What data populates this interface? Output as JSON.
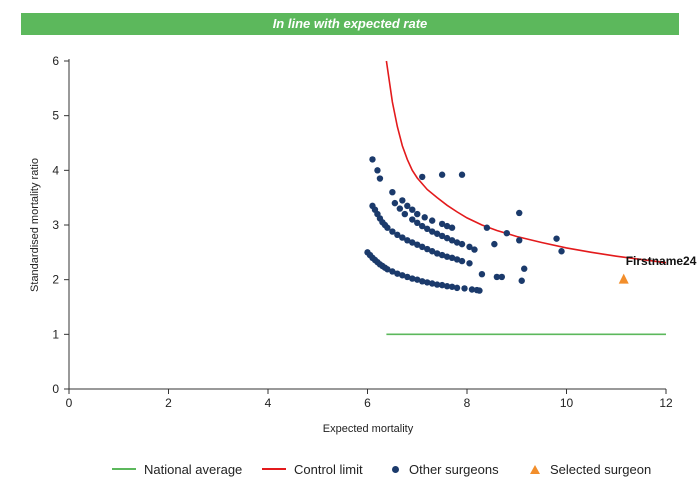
{
  "banner": {
    "text": "In line with expected rate",
    "color": "#5cb85c"
  },
  "chart_data": {
    "type": "scatter",
    "xlabel": "Expected mortality",
    "ylabel": "Standardised mortality ratio",
    "xlim": [
      0,
      12
    ],
    "ylim": [
      0,
      6
    ],
    "xticks": [
      0,
      2,
      4,
      6,
      8,
      10,
      12
    ],
    "yticks": [
      0,
      1,
      2,
      3,
      4,
      5,
      6
    ],
    "grid": false,
    "legend_position": "bottom",
    "annotation": {
      "text": "Firstname24",
      "x": 11.15,
      "y": 2.27
    },
    "series": [
      {
        "name": "National average",
        "type": "line",
        "color": "#5cb85c",
        "x": [
          6.38,
          12.0
        ],
        "y": [
          1.0,
          1.0
        ]
      },
      {
        "name": "Control limit",
        "type": "line",
        "color": "#e31a1c",
        "x": [
          6.38,
          6.5,
          6.6,
          6.7,
          6.8,
          6.9,
          7.0,
          7.2,
          7.4,
          7.6,
          7.8,
          8.0,
          8.3,
          8.6,
          9.0,
          9.5,
          10.0,
          10.5,
          11.0,
          11.5,
          12.0
        ],
        "y": [
          6.0,
          5.25,
          4.8,
          4.45,
          4.2,
          4.0,
          3.86,
          3.65,
          3.5,
          3.36,
          3.24,
          3.13,
          3.0,
          2.9,
          2.79,
          2.68,
          2.58,
          2.5,
          2.43,
          2.37,
          2.31
        ]
      },
      {
        "name": "Other surgeons",
        "type": "scatter",
        "color": "#1b3a6b",
        "x": [
          6.0,
          6.05,
          6.1,
          6.15,
          6.2,
          6.25,
          6.3,
          6.35,
          6.4,
          6.5,
          6.6,
          6.7,
          6.8,
          6.9,
          7.0,
          7.1,
          7.2,
          7.3,
          7.4,
          7.5,
          7.6,
          7.7,
          7.8,
          7.95,
          8.1,
          8.2,
          8.25,
          6.1,
          6.15,
          6.2,
          6.25,
          6.3,
          6.35,
          6.4,
          6.5,
          6.6,
          6.7,
          6.8,
          6.9,
          7.0,
          7.1,
          7.2,
          7.3,
          7.4,
          7.5,
          7.6,
          7.7,
          7.8,
          7.9,
          8.05,
          6.55,
          6.65,
          6.75,
          6.9,
          7.0,
          7.1,
          7.2,
          7.3,
          7.4,
          7.5,
          7.6,
          7.7,
          7.8,
          7.9,
          8.05,
          8.15,
          6.1,
          6.2,
          6.25,
          6.5,
          6.7,
          6.8,
          6.9,
          7.0,
          7.15,
          7.3,
          7.5,
          7.6,
          7.7,
          7.1,
          7.5,
          7.9,
          8.3,
          8.4,
          8.55,
          8.6,
          8.7,
          8.8,
          9.05,
          9.05,
          9.1,
          9.15,
          9.8,
          9.9
        ],
        "y": [
          2.5,
          2.45,
          2.4,
          2.36,
          2.32,
          2.28,
          2.25,
          2.22,
          2.19,
          2.15,
          2.11,
          2.08,
          2.05,
          2.02,
          2.0,
          1.97,
          1.95,
          1.93,
          1.91,
          1.9,
          1.88,
          1.87,
          1.85,
          1.84,
          1.82,
          1.81,
          1.8,
          3.35,
          3.28,
          3.2,
          3.12,
          3.05,
          3.0,
          2.95,
          2.88,
          2.82,
          2.77,
          2.72,
          2.68,
          2.64,
          2.6,
          2.56,
          2.52,
          2.48,
          2.45,
          2.42,
          2.4,
          2.37,
          2.34,
          2.3,
          3.4,
          3.3,
          3.2,
          3.1,
          3.04,
          2.98,
          2.93,
          2.88,
          2.84,
          2.8,
          2.76,
          2.72,
          2.68,
          2.65,
          2.6,
          2.55,
          4.2,
          4.0,
          3.85,
          3.6,
          3.45,
          3.35,
          3.28,
          3.2,
          3.14,
          3.08,
          3.02,
          2.98,
          2.95,
          3.88,
          3.92,
          3.92,
          2.1,
          2.95,
          2.65,
          2.05,
          2.05,
          2.85,
          3.22,
          2.72,
          1.98,
          2.2,
          2.75,
          2.52
        ]
      },
      {
        "name": "Selected surgeon",
        "type": "scatter",
        "marker": "triangle",
        "color": "#f28e2b",
        "x": [
          11.15
        ],
        "y": [
          2.0
        ]
      }
    ]
  }
}
